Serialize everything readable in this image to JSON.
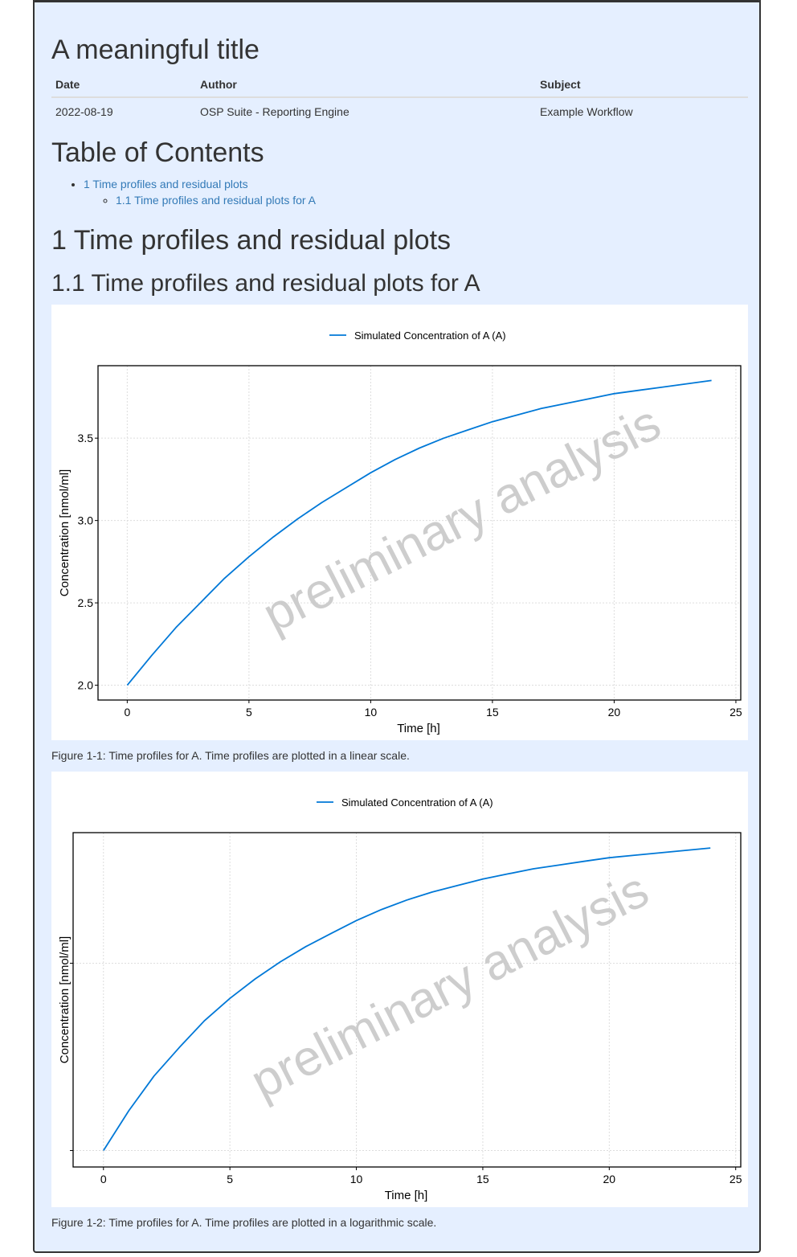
{
  "title": "A meaningful title",
  "meta": {
    "headers": [
      "Date",
      "Author",
      "Subject"
    ],
    "values": [
      "2022-08-19",
      "OSP Suite - Reporting Engine",
      "Example Workflow"
    ]
  },
  "toc": {
    "heading": "Table of Contents",
    "item1": "1 Time profiles and residual plots",
    "item1_1": "1.1 Time profiles and residual plots for A",
    "link_color": "#337ab7"
  },
  "section": {
    "heading": "1 Time profiles and residual plots"
  },
  "subsection": {
    "heading": "1.1 Time profiles and residual plots for A"
  },
  "watermark": "preliminary analysis",
  "chart_data": [
    {
      "type": "line",
      "legend": "top",
      "series": [
        {
          "name": "Simulated Concentration of A (A)",
          "color": "#0078d7",
          "x": [
            0,
            1,
            2,
            3,
            4,
            5,
            6,
            7,
            8,
            9,
            10,
            11,
            12,
            13,
            14,
            15,
            16,
            17,
            18,
            19,
            20,
            21,
            22,
            23,
            24
          ],
          "y": [
            2.0,
            2.18,
            2.35,
            2.5,
            2.65,
            2.78,
            2.9,
            3.01,
            3.11,
            3.2,
            3.29,
            3.37,
            3.44,
            3.5,
            3.55,
            3.6,
            3.64,
            3.68,
            3.71,
            3.74,
            3.77,
            3.79,
            3.81,
            3.83,
            3.85
          ]
        }
      ],
      "xlabel": "Time [h]",
      "ylabel": "Concentration [nmol/ml]",
      "xlim": [
        -1.2,
        25.2
      ],
      "ylim": [
        1.91,
        3.94
      ],
      "x_ticks": [
        0,
        5,
        10,
        15,
        20,
        25
      ],
      "y_ticks": [
        2.0,
        2.5,
        3.0,
        3.5
      ],
      "y_tick_labels": [
        "2.0",
        "2.5",
        "3.0",
        "3.5"
      ],
      "log_y": false,
      "grid": true,
      "caption": "Figure 1-1: Time profiles for A. Time profiles are plotted in a linear scale."
    },
    {
      "type": "line",
      "legend": "top",
      "series": [
        {
          "name": "Simulated Concentration of A (A)",
          "color": "#0078d7",
          "x": [
            0,
            1,
            2,
            3,
            4,
            5,
            6,
            7,
            8,
            9,
            10,
            11,
            12,
            13,
            14,
            15,
            16,
            17,
            18,
            19,
            20,
            21,
            22,
            23,
            24
          ],
          "y": [
            2.0,
            2.18,
            2.35,
            2.5,
            2.65,
            2.78,
            2.9,
            3.01,
            3.11,
            3.2,
            3.29,
            3.37,
            3.44,
            3.5,
            3.55,
            3.6,
            3.64,
            3.68,
            3.71,
            3.74,
            3.77,
            3.79,
            3.81,
            3.83,
            3.85
          ]
        }
      ],
      "xlabel": "Time [h]",
      "ylabel": "Concentration [nmol/ml]",
      "xlim": [
        -1.2,
        25.2
      ],
      "ylim": [
        1.93,
        3.98
      ],
      "x_ticks": [
        0,
        5,
        10,
        15,
        20,
        25
      ],
      "y_ticks": [
        2.0,
        3.0
      ],
      "y_tick_labels": [
        "",
        ""
      ],
      "log_y": true,
      "grid": true,
      "caption": "Figure 1-2: Time profiles for A. Time profiles are plotted in a logarithmic scale."
    }
  ]
}
